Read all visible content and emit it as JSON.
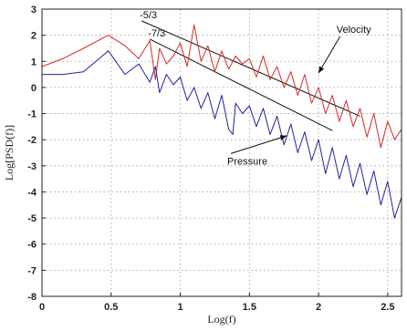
{
  "chart_data": {
    "type": "line",
    "title": "",
    "xlabel": "Log(f)",
    "ylabel": "Log[PSD(f)]",
    "xlim": [
      0,
      2.6
    ],
    "ylim": [
      -8,
      3
    ],
    "grid": true,
    "x_ticks": [
      "0",
      "0.5",
      "1",
      "1.5",
      "2",
      "2.5"
    ],
    "x_tick_values": [
      0,
      0.5,
      1,
      1.5,
      2,
      2.5
    ],
    "y_ticks": [
      "3",
      "2",
      "1",
      "0",
      "-1",
      "-2",
      "-3",
      "-4",
      "-5",
      "-6",
      "-7",
      "-8"
    ],
    "y_tick_values": [
      3,
      2,
      1,
      0,
      -1,
      -2,
      -3,
      -4,
      -5,
      -6,
      -7,
      -8
    ],
    "colors": {
      "velocity": "#d42a2a",
      "pressure": "#23239a",
      "reference": "#111111"
    },
    "series": [
      {
        "key": "velocity",
        "x": [
          0,
          0.15,
          0.3,
          0.48,
          0.6,
          0.7,
          0.78,
          0.82,
          0.85,
          0.9,
          0.95,
          1.0,
          1.05,
          1.1,
          1.15,
          1.2,
          1.25,
          1.3,
          1.35,
          1.4,
          1.45,
          1.5,
          1.55,
          1.6,
          1.65,
          1.7,
          1.75,
          1.8,
          1.85,
          1.9,
          1.95,
          2.0,
          2.05,
          2.1,
          2.15,
          2.2,
          2.25,
          2.3,
          2.35,
          2.4,
          2.45,
          2.5,
          2.55,
          2.6
        ],
        "y": [
          0.8,
          1.1,
          1.5,
          2.0,
          1.6,
          1.1,
          1.8,
          0.3,
          1.5,
          0.9,
          1.2,
          1.7,
          0.8,
          2.4,
          1.0,
          1.6,
          0.6,
          1.4,
          0.7,
          1.2,
          0.9,
          1.1,
          0.4,
          1.2,
          0.3,
          0.8,
          0.0,
          0.6,
          -0.3,
          0.5,
          -0.6,
          0.0,
          -1.0,
          -0.3,
          -1.3,
          -0.5,
          -1.5,
          -0.8,
          -1.9,
          -1.0,
          -2.3,
          -1.3,
          -2.0,
          -1.6
        ]
      },
      {
        "key": "pressure",
        "x": [
          0,
          0.15,
          0.3,
          0.48,
          0.6,
          0.7,
          0.78,
          0.82,
          0.85,
          0.9,
          0.95,
          1.0,
          1.05,
          1.1,
          1.15,
          1.2,
          1.25,
          1.3,
          1.35,
          1.38,
          1.4,
          1.45,
          1.5,
          1.55,
          1.6,
          1.65,
          1.7,
          1.75,
          1.8,
          1.85,
          1.9,
          1.95,
          2.0,
          2.05,
          2.1,
          2.15,
          2.2,
          2.25,
          2.3,
          2.35,
          2.4,
          2.45,
          2.5,
          2.55,
          2.6
        ],
        "y": [
          0.5,
          0.5,
          0.6,
          1.4,
          0.5,
          0.9,
          0.2,
          0.8,
          -0.2,
          0.5,
          0.1,
          0.4,
          -0.5,
          0.0,
          -0.8,
          -0.2,
          -1.2,
          -0.3,
          -1.6,
          -1.8,
          -0.6,
          -1.0,
          -0.7,
          -1.5,
          -0.8,
          -1.8,
          -1.1,
          -2.2,
          -1.4,
          -2.5,
          -1.7,
          -2.8,
          -2.0,
          -3.3,
          -2.3,
          -3.5,
          -2.6,
          -3.8,
          -2.9,
          -4.1,
          -3.2,
          -4.5,
          -3.6,
          -5.0,
          -4.2
        ]
      }
    ],
    "reference_lines": [
      {
        "label": "-5/3",
        "x": [
          0.72,
          2.3
        ],
        "y": [
          2.55,
          -1.1
        ]
      },
      {
        "label": "-7/3",
        "x": [
          0.78,
          2.1
        ],
        "y": [
          1.85,
          -1.65
        ]
      }
    ],
    "annotations": [
      {
        "text": "Velocity",
        "text_at": [
          2.13,
          2.1
        ],
        "arrow_to": [
          2.0,
          0.55
        ]
      },
      {
        "text": "Pressure",
        "text_at": [
          1.34,
          -2.95
        ],
        "arrow_to": [
          1.77,
          -1.85
        ]
      }
    ]
  }
}
